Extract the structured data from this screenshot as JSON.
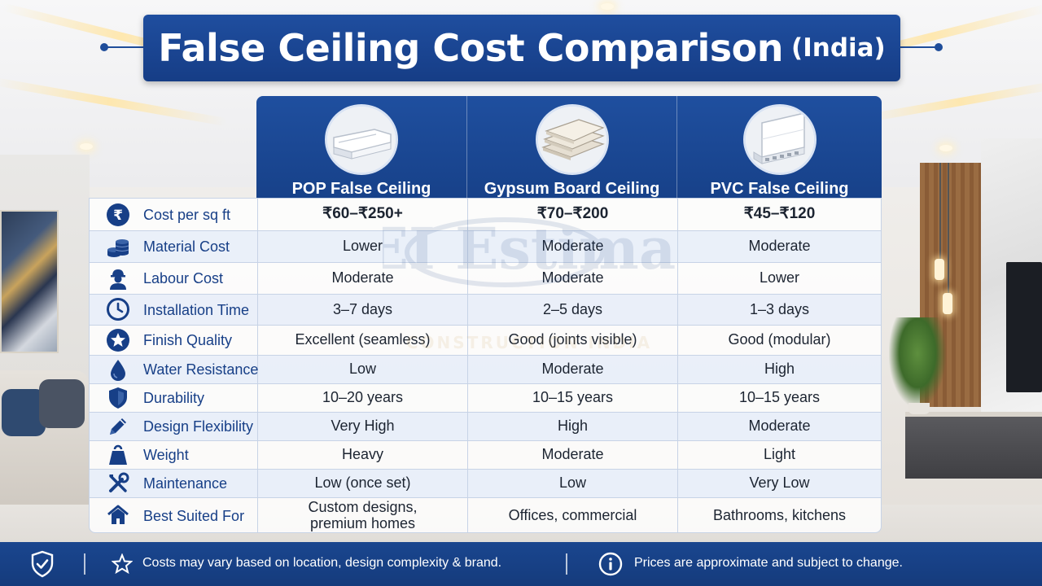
{
  "title": {
    "main": "False Ceiling Cost Comparison",
    "suffix": "(India)"
  },
  "columns": [
    {
      "name": "POP False Ceiling",
      "image_icon": "cornice-molding-icon"
    },
    {
      "name": "Gypsum Board Ceiling",
      "image_icon": "gypsum-boards-icon"
    },
    {
      "name": "PVC False Ceiling",
      "image_icon": "pvc-panel-icon"
    }
  ],
  "rows": [
    {
      "icon": "rupee-icon",
      "label": "Cost per sq ft",
      "values": [
        "₹60–₹250+",
        "₹70–₹200",
        "₹45–₹120"
      ]
    },
    {
      "icon": "coins-icon",
      "label": "Material Cost",
      "values": [
        "Lower",
        "Moderate",
        "Moderate"
      ]
    },
    {
      "icon": "worker-icon",
      "label": "Labour  Cost",
      "values": [
        "Moderate",
        "Moderate",
        "Lower"
      ]
    },
    {
      "icon": "clock-icon",
      "label": "Installation Time",
      "values": [
        "3–7 days",
        "2–5 days",
        "1–3 days"
      ]
    },
    {
      "icon": "star-icon",
      "label": "Finish Quality",
      "values": [
        "Excellent (seamless)",
        "Good (joints visible)",
        "Good (modular)"
      ]
    },
    {
      "icon": "water-drop-icon",
      "label": "Water Resistance",
      "values": [
        "Low",
        "Moderate",
        "High"
      ]
    },
    {
      "icon": "shield-icon",
      "label": "Durability",
      "values": [
        "10–20 years",
        "10–15 years",
        "10–15 years"
      ]
    },
    {
      "icon": "pencil-icon",
      "label": "Design Flexibility",
      "values": [
        "Very High",
        "High",
        "Moderate"
      ]
    },
    {
      "icon": "weight-icon",
      "label": "Weight",
      "values": [
        "Heavy",
        "Moderate",
        "Light"
      ]
    },
    {
      "icon": "tools-icon",
      "label": "Maintenance",
      "values": [
        "Low (once set)",
        "Low",
        "Very Low"
      ]
    },
    {
      "icon": "home-icon",
      "label": "Best Suited For",
      "values": [
        "Custom designs,\npremium homes",
        "Offices, commercial",
        "Bathrooms, kitchens"
      ]
    }
  ],
  "watermark": {
    "main": "CEI Estimate",
    "sub": "CONSTRUCTION INDIA"
  },
  "footer": {
    "note_left": "Costs may vary based on location, design complexity & brand.",
    "note_right": "Prices are approximate and subject to change."
  },
  "colors": {
    "primary": "#1f4e9f",
    "label_text": "#173f87",
    "row_alt": "#e4ecf8"
  }
}
